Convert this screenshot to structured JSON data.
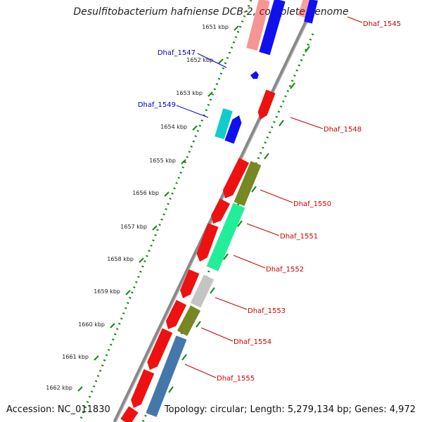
{
  "title": "Desulfitobacterium hafniense DCB-2, complete genome",
  "accession_text": "Accession: NC_011830",
  "topology_text": "Topology: circular; Length: 5,279,134 bp; Genes: 4,972",
  "ticks": [
    "1651 kbp",
    "1652 kbp",
    "1653 kbp",
    "1654 kbp",
    "1655 kbp",
    "1656 kbp",
    "1657 kbp",
    "1658 kbp",
    "1659 kbp",
    "1660 kbp",
    "1661 kbp",
    "1662 kbp"
  ],
  "gene_labels": [
    {
      "name": "Dhaf_1545",
      "color": "#cc0000"
    },
    {
      "name": "Dhaf_1547",
      "color": "#0000cc"
    },
    {
      "name": "Dhaf_1548",
      "color": "#cc0000"
    },
    {
      "name": "Dhaf_1549",
      "color": "#0000cc"
    },
    {
      "name": "Dhaf_1550",
      "color": "#cc0000"
    },
    {
      "name": "Dhaf_1551",
      "color": "#cc0000"
    },
    {
      "name": "Dhaf_1552",
      "color": "#cc0000"
    },
    {
      "name": "Dhaf_1553",
      "color": "#cc0000"
    },
    {
      "name": "Dhaf_1554",
      "color": "#cc0000"
    },
    {
      "name": "Dhaf_1555",
      "color": "#cc0000"
    }
  ],
  "colors": {
    "red": "#ee1111",
    "blue": "#1111ee",
    "cyan": "#11cccc",
    "olive": "#778822",
    "green": "#22ee99",
    "gray": "#c4c4c4",
    "steel": "#4477aa",
    "backbone": "#888888",
    "dots": "#118811"
  }
}
